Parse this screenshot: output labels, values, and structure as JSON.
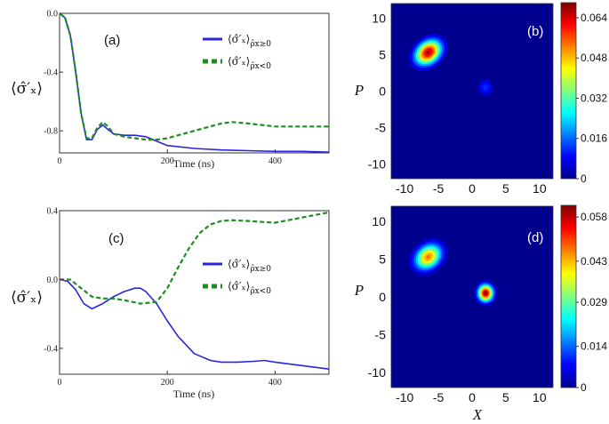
{
  "colors": {
    "blue_line": "#2626e0",
    "green_line": "#1e8c1e"
  },
  "legend": {
    "blue": "⟨σ̂′x⟩ρ̂x≥0",
    "green": "⟨σ̂′x⟩ρ̂x<0",
    "blue_main": "⟨σ̂′ₓ⟩",
    "blue_sub": "ρ̂x≥0",
    "green_main": "⟨σ̂′ₓ⟩",
    "green_sub": "ρ̂x<0"
  },
  "chart_data": [
    {
      "panel": "(a)",
      "type": "line",
      "xlabel": "Time (ns)",
      "ylabel": "⟨σ̂′ₓ⟩",
      "xlim": [
        0,
        500
      ],
      "ylim": [
        -0.95,
        0.0
      ],
      "xticks": [
        "0",
        "200",
        "400"
      ],
      "yticks": [
        "0.0",
        "-0.4",
        "-0.8"
      ],
      "xtick_values": [
        0,
        200,
        400
      ],
      "ytick_values": [
        0.0,
        -0.4,
        -0.8
      ],
      "series": [
        {
          "name": "⟨σ̂′x⟩ρ̂x≥0",
          "color": "#2626e0",
          "style": "solid",
          "x": [
            0,
            10,
            20,
            30,
            40,
            50,
            60,
            70,
            80,
            90,
            100,
            120,
            140,
            160,
            180,
            200,
            250,
            300,
            350,
            400,
            450,
            500
          ],
          "y": [
            0.0,
            -0.03,
            -0.15,
            -0.4,
            -0.68,
            -0.86,
            -0.86,
            -0.79,
            -0.76,
            -0.79,
            -0.82,
            -0.83,
            -0.83,
            -0.84,
            -0.87,
            -0.9,
            -0.92,
            -0.93,
            -0.935,
            -0.94,
            -0.94,
            -0.945
          ]
        },
        {
          "name": "⟨σ̂′x⟩ρ̂x<0",
          "color": "#1e8c1e",
          "style": "dashed",
          "x": [
            0,
            10,
            20,
            30,
            40,
            50,
            60,
            70,
            80,
            90,
            100,
            120,
            140,
            160,
            180,
            200,
            250,
            300,
            320,
            350,
            400,
            450,
            500
          ],
          "y": [
            0.0,
            -0.03,
            -0.15,
            -0.4,
            -0.68,
            -0.85,
            -0.85,
            -0.78,
            -0.74,
            -0.77,
            -0.82,
            -0.84,
            -0.85,
            -0.86,
            -0.86,
            -0.85,
            -0.8,
            -0.75,
            -0.74,
            -0.75,
            -0.77,
            -0.77,
            -0.77
          ]
        }
      ]
    },
    {
      "panel": "(c)",
      "type": "line",
      "xlabel": "Time (ns)",
      "ylabel": "⟨σ̂′ₓ⟩",
      "xlim": [
        0,
        500
      ],
      "ylim": [
        -0.55,
        0.4
      ],
      "xticks": [
        "0",
        "200",
        "400"
      ],
      "yticks": [
        "0.4",
        "0.0",
        "-0.4"
      ],
      "xtick_values": [
        0,
        200,
        400
      ],
      "ytick_values": [
        0.4,
        0.0,
        -0.4
      ],
      "series": [
        {
          "name": "⟨σ̂′x⟩ρ̂x≥0",
          "color": "#2626e0",
          "style": "solid",
          "x": [
            0,
            15,
            30,
            45,
            60,
            80,
            100,
            120,
            140,
            150,
            160,
            180,
            200,
            220,
            250,
            280,
            300,
            330,
            360,
            380,
            400,
            450,
            500
          ],
          "y": [
            0.0,
            -0.01,
            -0.06,
            -0.14,
            -0.17,
            -0.14,
            -0.1,
            -0.07,
            -0.05,
            -0.05,
            -0.07,
            -0.14,
            -0.24,
            -0.33,
            -0.43,
            -0.47,
            -0.48,
            -0.48,
            -0.475,
            -0.47,
            -0.48,
            -0.5,
            -0.52
          ]
        },
        {
          "name": "⟨σ̂′x⟩ρ̂x<0",
          "color": "#1e8c1e",
          "style": "dashed",
          "x": [
            0,
            20,
            40,
            60,
            80,
            100,
            120,
            150,
            180,
            200,
            220,
            240,
            260,
            280,
            300,
            320,
            350,
            400,
            450,
            500
          ],
          "y": [
            0.0,
            0.0,
            -0.05,
            -0.1,
            -0.11,
            -0.11,
            -0.12,
            -0.14,
            -0.13,
            -0.05,
            0.07,
            0.18,
            0.27,
            0.32,
            0.34,
            0.345,
            0.34,
            0.33,
            0.36,
            0.39
          ]
        }
      ]
    },
    {
      "panel": "(b)",
      "type": "heatmap",
      "xlabel": "",
      "ylabel": "P",
      "xlim": [
        -12,
        12
      ],
      "ylim": [
        -12,
        12
      ],
      "xticks": [
        "-10",
        "-5",
        "0",
        "5",
        "10"
      ],
      "yticks": [
        "10",
        "5",
        "0",
        "-5",
        "-10"
      ],
      "xtick_values": [
        -10,
        -5,
        0,
        5,
        10
      ],
      "ytick_values": [
        10,
        5,
        0,
        -5,
        -10
      ],
      "colorbar_ticks": [
        "0.064",
        "0.048",
        "0.032",
        "0.016",
        "0"
      ],
      "colorbar_values": [
        0.064,
        0.048,
        0.032,
        0.016,
        0
      ],
      "vmax": 0.07,
      "peaks": [
        {
          "x": -6.5,
          "y": 5.3,
          "value": 0.068,
          "shape": "elongated"
        },
        {
          "x": 2,
          "y": 0.5,
          "value": 0.012,
          "shape": "round"
        }
      ]
    },
    {
      "panel": "(d)",
      "type": "heatmap",
      "xlabel": "X",
      "ylabel": "P",
      "xlim": [
        -12,
        12
      ],
      "ylim": [
        -12,
        12
      ],
      "xticks": [
        "-10",
        "-5",
        "0",
        "5",
        "10"
      ],
      "yticks": [
        "10",
        "5",
        "0",
        "-5",
        "-10"
      ],
      "xtick_values": [
        -10,
        -5,
        0,
        5,
        10
      ],
      "ytick_values": [
        10,
        5,
        0,
        -5,
        -10
      ],
      "colorbar_ticks": [
        "0.058",
        "0.043",
        "0.029",
        "0.014",
        "0"
      ],
      "colorbar_values": [
        0.058,
        0.043,
        0.029,
        0.014,
        0
      ],
      "vmax": 0.062,
      "peaks": [
        {
          "x": -6.5,
          "y": 5.3,
          "value": 0.048,
          "shape": "elongated"
        },
        {
          "x": 2,
          "y": 0.5,
          "value": 0.062,
          "shape": "round"
        }
      ]
    }
  ]
}
